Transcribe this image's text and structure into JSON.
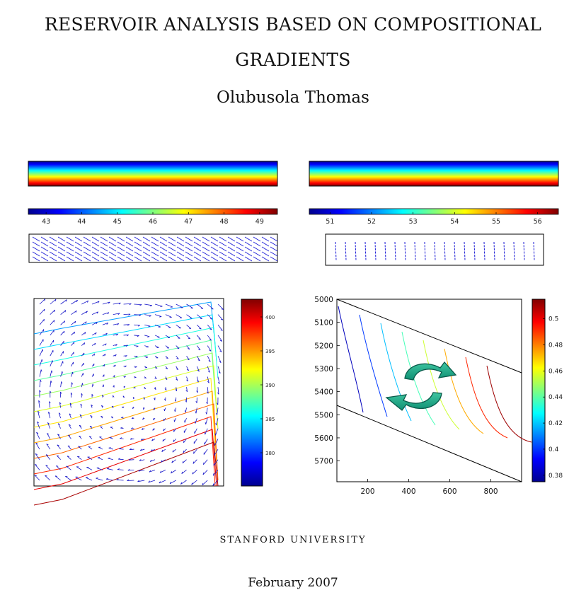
{
  "title_lines": [
    "RESERVOIR ANALYSIS BASED ON COMPOSITIONAL",
    "GRADIENTS"
  ],
  "author": "Olubusola Thomas",
  "university": "STANFORD UNIVERSITY",
  "date": "February 2007",
  "colormap": [
    "#00008f",
    "#0000ff",
    "#007fff",
    "#00ffff",
    "#7fff7f",
    "#ffff00",
    "#ff7f00",
    "#ff0000",
    "#800000"
  ],
  "chart_data": [
    {
      "type": "heatmap",
      "panel": "left-strip",
      "colorbar_ticks": [
        "43",
        "44",
        "45",
        "46",
        "47",
        "48",
        "49"
      ]
    },
    {
      "type": "heatmap",
      "panel": "right-strip",
      "colorbar_ticks": [
        "51",
        "52",
        "53",
        "54",
        "55",
        "56"
      ]
    },
    {
      "type": "line",
      "panel": "left-contour-quiver",
      "colorbar_ticks": [
        "400",
        "395",
        "390",
        "385",
        "380"
      ]
    },
    {
      "type": "line",
      "panel": "right-contour",
      "y_ticks": [
        "5000",
        "5100",
        "5200",
        "5300",
        "5400",
        "5500",
        "5600",
        "5700"
      ],
      "x_ticks": [
        "200",
        "400",
        "600",
        "800"
      ],
      "colorbar_ticks": [
        "0.5",
        "0.48",
        "0.46",
        "0.44",
        "0.42",
        "0.4",
        "0.38"
      ],
      "xlim": [
        50,
        950
      ],
      "ylim": [
        5000,
        5790
      ],
      "colorbar_range": [
        0.375,
        0.515
      ]
    }
  ]
}
